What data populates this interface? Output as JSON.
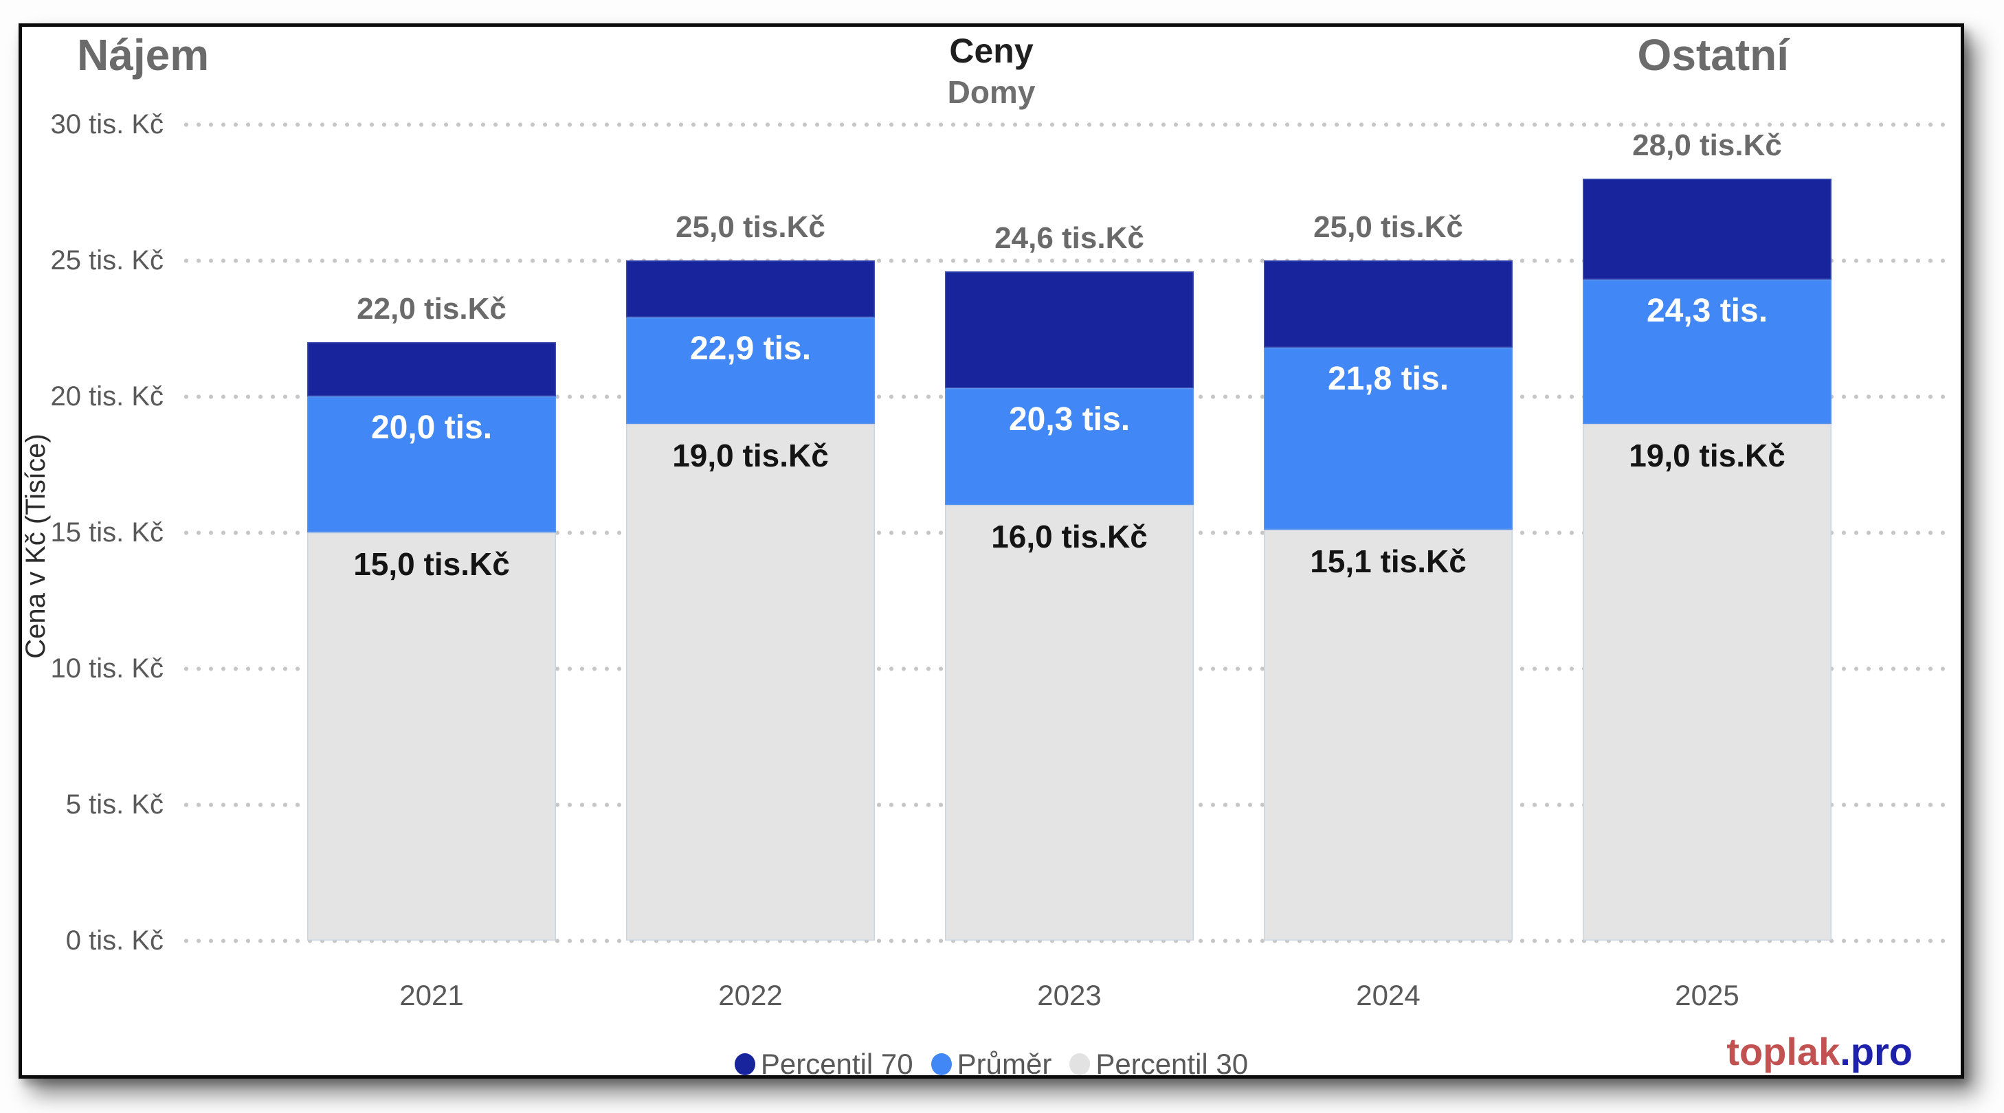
{
  "panels": {
    "left_title": "Nájem",
    "right_title": "Ostatní"
  },
  "chart_data": {
    "type": "bar",
    "variant": "overlay-range-columns",
    "title": "Ceny",
    "subtitle": "Domy",
    "ylabel": "Cena v Kč (Tisíce)",
    "ylim": [
      0,
      30
    ],
    "grid": "dotted-horizontal",
    "legend_position": "bottom",
    "yticks": [
      {
        "value": 30,
        "label": "30 tis. Kč"
      },
      {
        "value": 25,
        "label": "25 tis. Kč"
      },
      {
        "value": 20,
        "label": "20 tis. Kč"
      },
      {
        "value": 15,
        "label": "15 tis. Kč"
      },
      {
        "value": 10,
        "label": "10 tis. Kč"
      },
      {
        "value": 5,
        "label": "5 tis. Kč"
      },
      {
        "value": 0,
        "label": "0 tis. Kč"
      }
    ],
    "categories": [
      "2021",
      "2022",
      "2023",
      "2024",
      "2025"
    ],
    "series": [
      {
        "name": "Percentil 70",
        "color": "#17249B",
        "values": [
          22.0,
          25.0,
          24.6,
          25.0,
          28.0
        ],
        "data_labels": [
          "22,0 tis.Kč",
          "25,0 tis.Kč",
          "24,6 tis.Kč",
          "25,0 tis.Kč",
          "28,0 tis.Kč"
        ]
      },
      {
        "name": "Průměr",
        "color": "#4187F5",
        "values": [
          20.0,
          22.9,
          20.3,
          21.8,
          24.3
        ],
        "data_labels": [
          "20,0 tis.",
          "22,9 tis.",
          "20,3 tis.",
          "21,8 tis.",
          "24,3 tis."
        ]
      },
      {
        "name": "Percentil 30",
        "color": "#E4E4E4",
        "values": [
          15.0,
          19.0,
          16.0,
          15.1,
          19.0
        ],
        "data_labels": [
          "15,0 tis.Kč",
          "19,0 tis.Kč",
          "16,0 tis.Kč",
          "15,1 tis.Kč",
          "19,0 tis.Kč"
        ]
      }
    ]
  },
  "legend": [
    {
      "label": "Percentil 70",
      "color": "#17249B"
    },
    {
      "label": "Průměr",
      "color": "#4187F5"
    },
    {
      "label": "Percentil 30",
      "color": "#E2E2E2"
    }
  ],
  "brand": {
    "name": "toplak",
    "tld": ".pro",
    "name_color": "#C25252",
    "tld_color": "#1E22AA"
  }
}
